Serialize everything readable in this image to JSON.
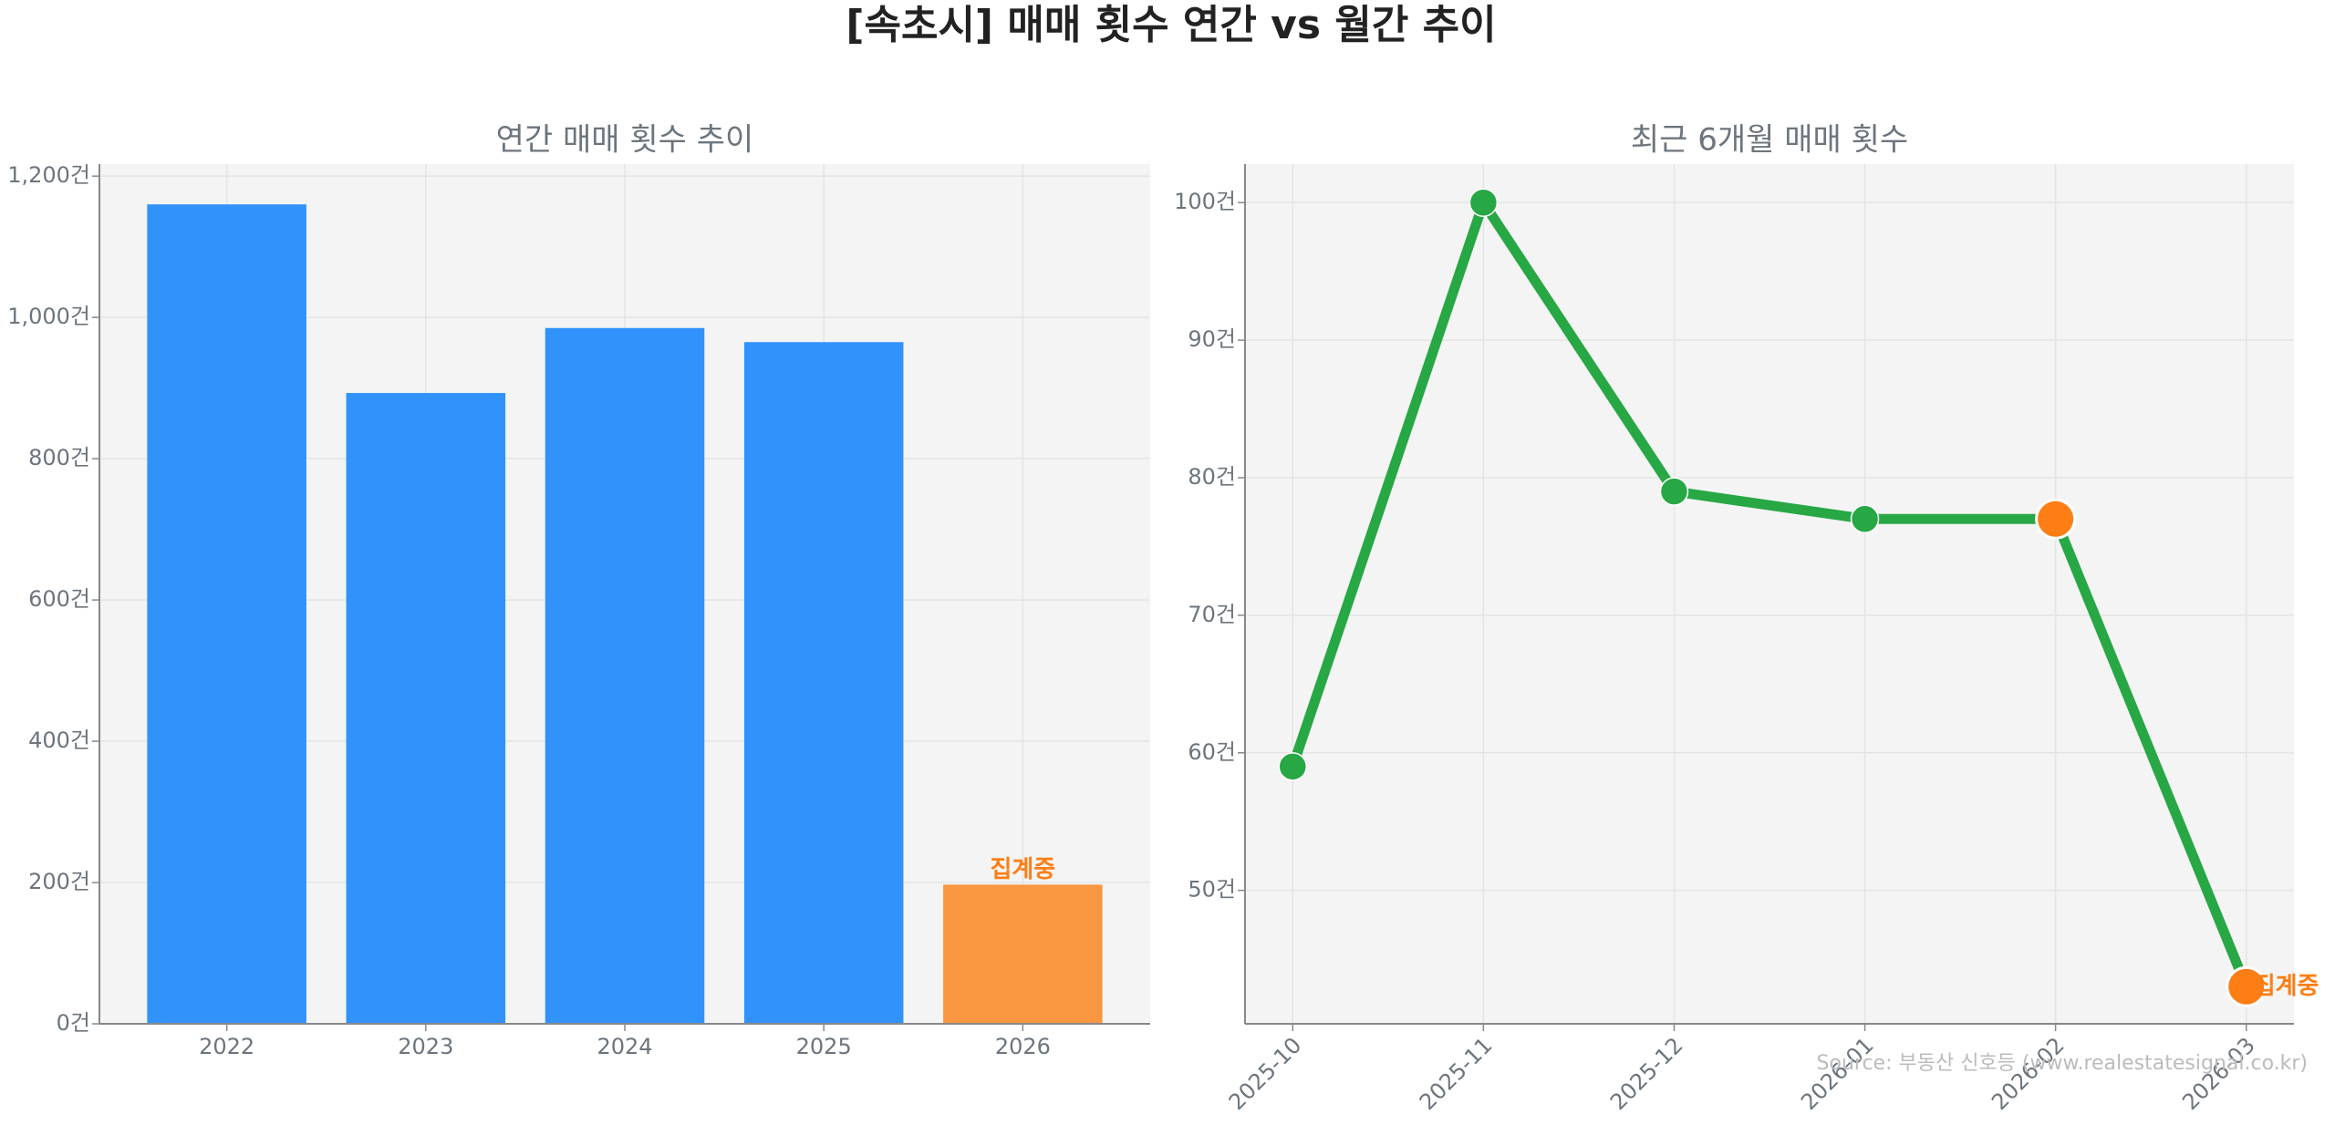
{
  "title": "[속초시] 매매 횟수 연간 vs 월간 추이",
  "source": "Source: 부동산 신호등 (www.realestatesignal.co.kr)",
  "chart_data": [
    {
      "type": "bar",
      "title": "연간 매매 횟수 추이",
      "categories": [
        "2022",
        "2023",
        "2024",
        "2025",
        "2026"
      ],
      "values": [
        1160,
        893,
        985,
        965,
        197
      ],
      "colors": [
        "#3192fb",
        "#3192fb",
        "#3192fb",
        "#3192fb",
        "#f99740"
      ],
      "ylim": [
        0,
        1217
      ],
      "yticks": [
        {
          "value": 0,
          "label": "0건"
        },
        {
          "value": 200,
          "label": "200건"
        },
        {
          "value": 400,
          "label": "400건"
        },
        {
          "value": 600,
          "label": "600건"
        },
        {
          "value": 800,
          "label": "800건"
        },
        {
          "value": 1000,
          "label": "1,000건"
        },
        {
          "value": 1200,
          "label": "1,200건"
        }
      ],
      "grid": true,
      "annotations": [
        {
          "text": "집계중",
          "x": "2026",
          "color": "#fd7e14"
        }
      ]
    },
    {
      "type": "line",
      "title": "최근 6개월 매매 횟수",
      "categories": [
        "2025-10",
        "2025-11",
        "2025-12",
        "2026-01",
        "2026-02",
        "2026-03"
      ],
      "values": [
        59,
        100,
        79,
        77,
        77,
        43
      ],
      "color": "#28a745",
      "point_colors": [
        "#28a745",
        "#28a745",
        "#28a745",
        "#28a745",
        "#fd7e14",
        "#fd7e14"
      ],
      "ylim": [
        40.3,
        102.8
      ],
      "yticks": [
        {
          "value": 50,
          "label": "50건"
        },
        {
          "value": 60,
          "label": "60건"
        },
        {
          "value": 70,
          "label": "70건"
        },
        {
          "value": 80,
          "label": "80건"
        },
        {
          "value": 90,
          "label": "90건"
        },
        {
          "value": 100,
          "label": "100건"
        }
      ],
      "grid": true,
      "annotations": [
        {
          "text": "집계중",
          "x": "2026-03",
          "color": "#fd7e14"
        }
      ]
    }
  ]
}
